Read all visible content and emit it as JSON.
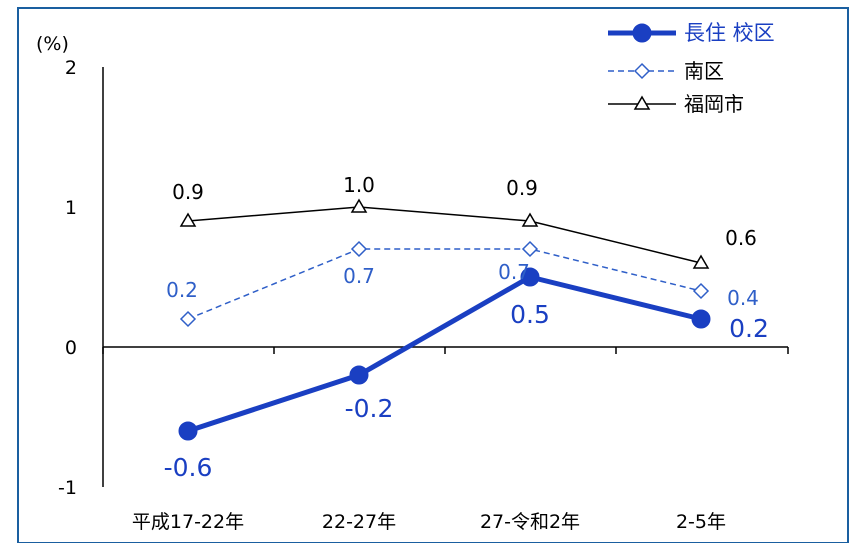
{
  "chart_data": {
    "type": "line",
    "title": "",
    "ylabel": "(%)",
    "xlabel": "",
    "ylim": [
      -1,
      2
    ],
    "yticks": [
      "2",
      "1",
      "0",
      "-1"
    ],
    "categories": [
      "平成17-22年",
      "22-27年",
      "27-令和2年",
      "2-5年"
    ],
    "series": [
      {
        "name": "長住 校区",
        "values": [
          -0.6,
          -0.2,
          0.5,
          0.2
        ],
        "labels": [
          "-0.6",
          "-0.2",
          "0.5",
          "0.2"
        ],
        "color": "#1a3fc2",
        "style": "solid-thick",
        "marker": "circle"
      },
      {
        "name": "南区",
        "values": [
          0.2,
          0.7,
          0.7,
          0.4
        ],
        "labels": [
          "0.2",
          "0.7",
          "0.7",
          "0.4"
        ],
        "color": "#2f5fc8",
        "style": "dashed",
        "marker": "diamond"
      },
      {
        "name": "福岡市",
        "values": [
          0.9,
          1.0,
          0.9,
          0.6
        ],
        "labels": [
          "0.9",
          "1.0",
          "0.9",
          "0.6"
        ],
        "color": "#000000",
        "style": "solid-thin",
        "marker": "triangle"
      }
    ],
    "legend_position": "top-right"
  }
}
